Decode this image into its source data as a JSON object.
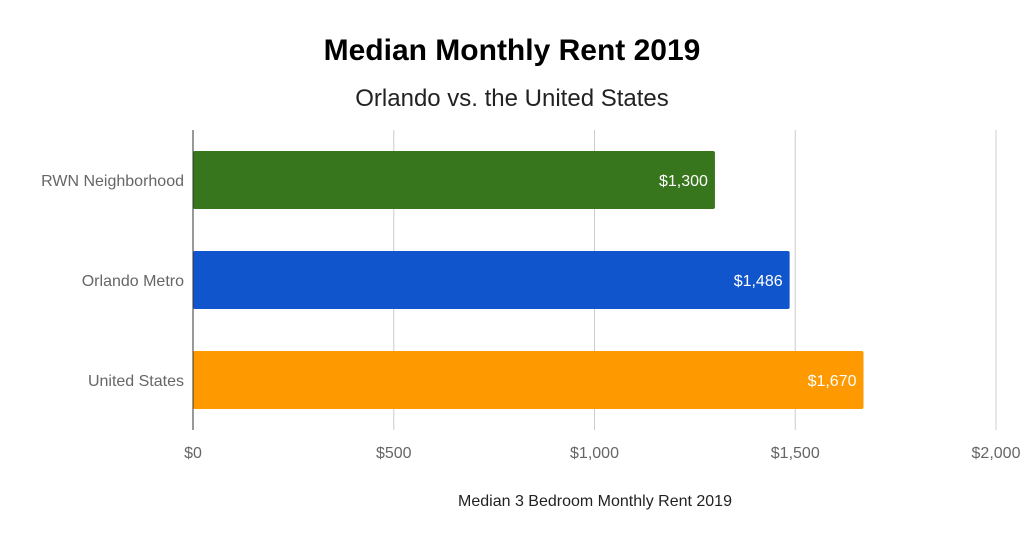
{
  "chart_data": {
    "type": "bar",
    "orientation": "horizontal",
    "title": "Median Monthly Rent 2019",
    "subtitle": "Orlando vs. the United States",
    "xlabel": "Median 3 Bedroom Monthly Rent 2019",
    "ylabel": "",
    "categories": [
      "RWN Neighborhood",
      "Orlando Metro",
      "United States"
    ],
    "values": [
      1300,
      1486,
      1670
    ],
    "value_labels": [
      "$1,300",
      "$1,486",
      "$1,670"
    ],
    "bar_colors": [
      "#38761d",
      "#1155cc",
      "#ff9900"
    ],
    "xlim": [
      0,
      2000
    ],
    "x_ticks": [
      0,
      500,
      1000,
      1500,
      2000
    ],
    "x_tick_labels": [
      "$0",
      "$500",
      "$1,000",
      "$1,500",
      "$2,000"
    ],
    "grid": true,
    "legend": "none"
  }
}
